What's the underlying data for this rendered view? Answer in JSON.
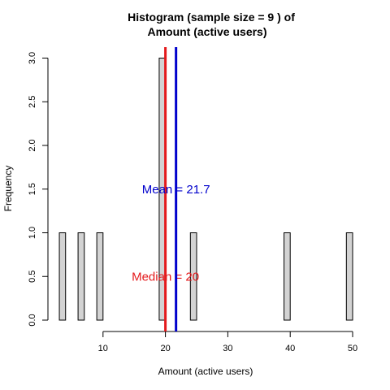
{
  "chart_data": {
    "type": "bar",
    "title": [
      "Histogram (sample size =  9 ) of",
      "Amount (active users)"
    ],
    "xlabel": "Amount (active users)",
    "ylabel": "Frequency",
    "xlim": [
      0,
      50
    ],
    "ylim": [
      0,
      3
    ],
    "bin_width": 1,
    "bars": [
      {
        "x_start": 3,
        "x_end": 4,
        "count": 1
      },
      {
        "x_start": 6,
        "x_end": 7,
        "count": 1
      },
      {
        "x_start": 9,
        "x_end": 10,
        "count": 1
      },
      {
        "x_start": 19,
        "x_end": 20,
        "count": 3
      },
      {
        "x_start": 24,
        "x_end": 25,
        "count": 1
      },
      {
        "x_start": 39,
        "x_end": 40,
        "count": 1
      },
      {
        "x_start": 49,
        "x_end": 50,
        "count": 1
      }
    ],
    "x_ticks": [
      10,
      20,
      30,
      40,
      50
    ],
    "y_ticks": [
      0.0,
      0.5,
      1.0,
      1.5,
      2.0,
      2.5,
      3.0
    ],
    "y_tick_labels": [
      "0.0",
      "0.5",
      "1.0",
      "1.5",
      "2.0",
      "2.5",
      "3.0"
    ],
    "bar_color": "#d3d3d3",
    "reference_lines": [
      {
        "name": "median",
        "value": 20,
        "color": "#e41a1c",
        "label": "Median = 20",
        "label_y": 0.5
      },
      {
        "name": "mean",
        "value": 21.7,
        "color": "#0000cc",
        "label": "Mean = 21.7",
        "label_y": 1.5
      }
    ],
    "grid": false,
    "legend": "none"
  }
}
